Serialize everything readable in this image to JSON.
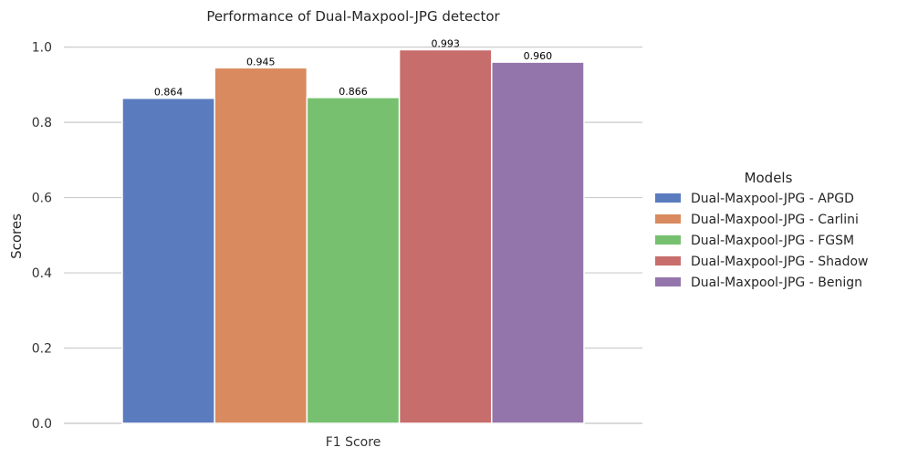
{
  "chart_data": {
    "type": "bar",
    "title": "Performance of Dual-Maxpool-JPG detector",
    "xlabel": "",
    "ylabel": "Scores",
    "categories": [
      "F1 Score"
    ],
    "ylim": [
      0,
      1.05
    ],
    "yticks": [
      "0.0",
      "0.2",
      "0.4",
      "0.6",
      "0.8",
      "1.0"
    ],
    "grid": true,
    "legend": {
      "title": "Models",
      "placement": "center-right"
    },
    "series": [
      {
        "name": "Dual-Maxpool-JPG - APGD",
        "values": [
          0.864
        ],
        "label": "0.864",
        "color": "#5b7bbf"
      },
      {
        "name": "Dual-Maxpool-JPG - Carlini",
        "values": [
          0.945
        ],
        "label": "0.945",
        "color": "#d98a5f"
      },
      {
        "name": "Dual-Maxpool-JPG - FGSM",
        "values": [
          0.866
        ],
        "label": "0.866",
        "color": "#76c070"
      },
      {
        "name": "Dual-Maxpool-JPG - Shadow",
        "values": [
          0.993
        ],
        "label": "0.993",
        "color": "#c76d6b"
      },
      {
        "name": "Dual-Maxpool-JPG - Benign",
        "values": [
          0.96
        ],
        "label": "0.960",
        "color": "#9375ab"
      }
    ]
  }
}
